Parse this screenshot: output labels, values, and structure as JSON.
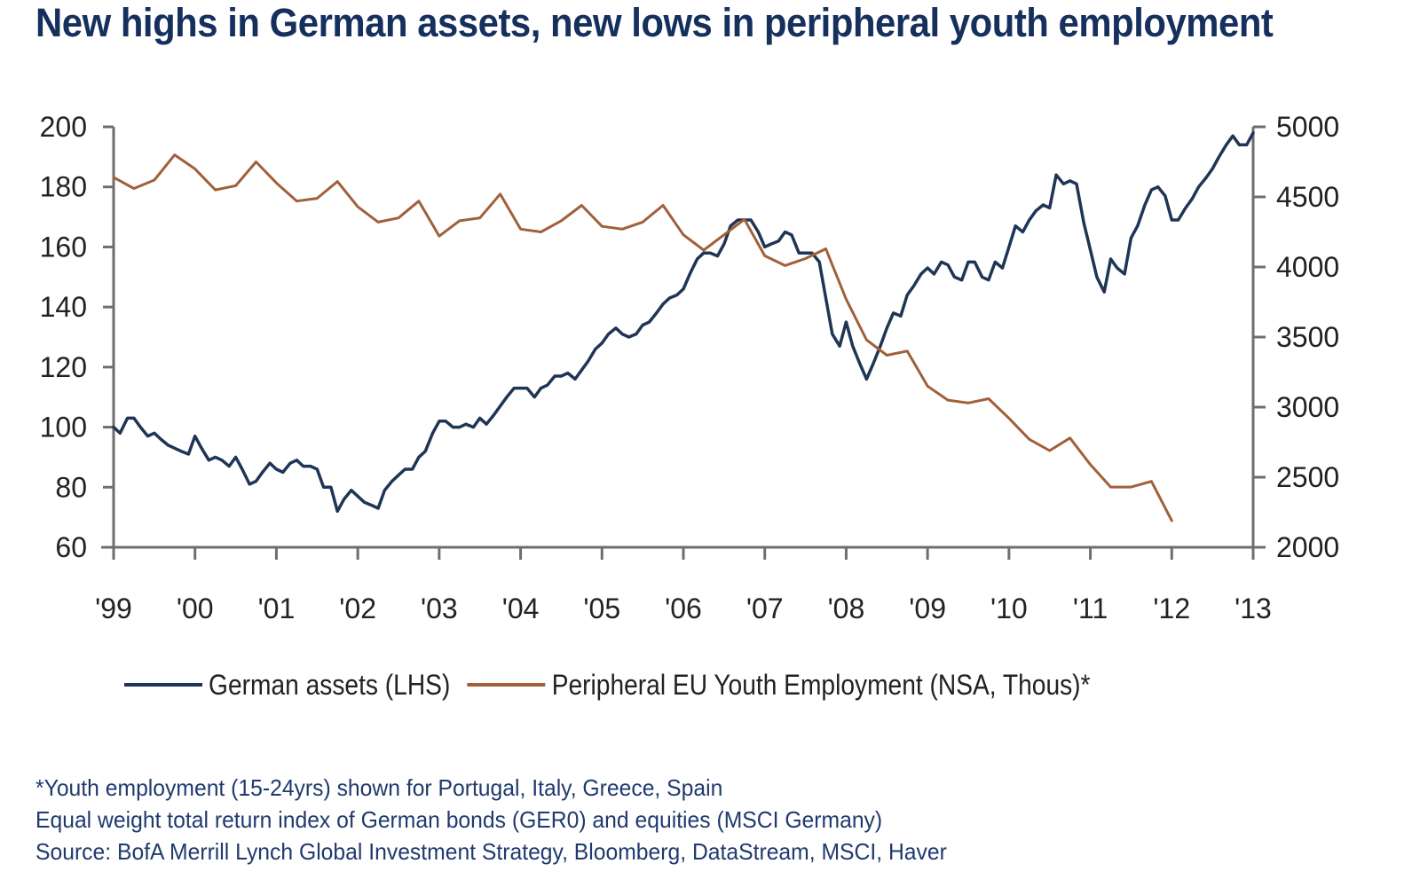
{
  "chart_data": {
    "type": "line",
    "title": "New highs in German assets, new lows in peripheral youth employment",
    "xlabel": "",
    "ylabel_left": "",
    "ylabel_right": "",
    "x_ticks": [
      "'99",
      "'00",
      "'01",
      "'02",
      "'03",
      "'04",
      "'05",
      "'06",
      "'07",
      "'08",
      "'09",
      "'10",
      "'11",
      "'12",
      "'13"
    ],
    "x_range": [
      1999,
      2013
    ],
    "ylim_left": [
      60,
      200
    ],
    "y_ticks_left": [
      60,
      80,
      100,
      120,
      140,
      160,
      180,
      200
    ],
    "ylim_right": [
      2000,
      5000
    ],
    "y_ticks_right": [
      2000,
      2500,
      3000,
      3500,
      4000,
      4500,
      5000
    ],
    "grid": false,
    "legend_position": "bottom",
    "series": [
      {
        "name": "German assets (LHS)",
        "axis": "left",
        "color": "#1f3556",
        "points": [
          [
            1999.0,
            100
          ],
          [
            1999.08,
            98
          ],
          [
            1999.17,
            103
          ],
          [
            1999.25,
            103
          ],
          [
            1999.33,
            100
          ],
          [
            1999.42,
            97
          ],
          [
            1999.5,
            98
          ],
          [
            1999.58,
            96
          ],
          [
            1999.67,
            94
          ],
          [
            1999.75,
            93
          ],
          [
            1999.83,
            92
          ],
          [
            1999.92,
            91
          ],
          [
            2000.0,
            97
          ],
          [
            2000.08,
            93
          ],
          [
            2000.17,
            89
          ],
          [
            2000.25,
            90
          ],
          [
            2000.33,
            89
          ],
          [
            2000.42,
            87
          ],
          [
            2000.5,
            90
          ],
          [
            2000.58,
            86
          ],
          [
            2000.67,
            81
          ],
          [
            2000.75,
            82
          ],
          [
            2000.83,
            85
          ],
          [
            2000.92,
            88
          ],
          [
            2001.0,
            86
          ],
          [
            2001.08,
            85
          ],
          [
            2001.17,
            88
          ],
          [
            2001.25,
            89
          ],
          [
            2001.33,
            87
          ],
          [
            2001.42,
            87
          ],
          [
            2001.5,
            86
          ],
          [
            2001.58,
            80
          ],
          [
            2001.67,
            80
          ],
          [
            2001.75,
            72
          ],
          [
            2001.83,
            76
          ],
          [
            2001.92,
            79
          ],
          [
            2002.0,
            77
          ],
          [
            2002.08,
            75
          ],
          [
            2002.17,
            74
          ],
          [
            2002.25,
            73
          ],
          [
            2002.33,
            79
          ],
          [
            2002.42,
            82
          ],
          [
            2002.5,
            84
          ],
          [
            2002.58,
            86
          ],
          [
            2002.67,
            86
          ],
          [
            2002.75,
            90
          ],
          [
            2002.83,
            92
          ],
          [
            2002.92,
            98
          ],
          [
            2003.0,
            102
          ],
          [
            2003.08,
            102
          ],
          [
            2003.17,
            100
          ],
          [
            2003.25,
            100
          ],
          [
            2003.33,
            101
          ],
          [
            2003.42,
            100
          ],
          [
            2003.5,
            103
          ],
          [
            2003.58,
            101
          ],
          [
            2003.67,
            104
          ],
          [
            2003.75,
            107
          ],
          [
            2003.83,
            110
          ],
          [
            2003.92,
            113
          ],
          [
            2004.0,
            113
          ],
          [
            2004.08,
            113
          ],
          [
            2004.17,
            110
          ],
          [
            2004.25,
            113
          ],
          [
            2004.33,
            114
          ],
          [
            2004.42,
            117
          ],
          [
            2004.5,
            117
          ],
          [
            2004.58,
            118
          ],
          [
            2004.67,
            116
          ],
          [
            2004.75,
            119
          ],
          [
            2004.83,
            122
          ],
          [
            2004.92,
            126
          ],
          [
            2005.0,
            128
          ],
          [
            2005.08,
            131
          ],
          [
            2005.17,
            133
          ],
          [
            2005.25,
            131
          ],
          [
            2005.33,
            130
          ],
          [
            2005.42,
            131
          ],
          [
            2005.5,
            134
          ],
          [
            2005.58,
            135
          ],
          [
            2005.67,
            138
          ],
          [
            2005.75,
            141
          ],
          [
            2005.83,
            143
          ],
          [
            2005.92,
            144
          ],
          [
            2006.0,
            146
          ],
          [
            2006.08,
            151
          ],
          [
            2006.17,
            156
          ],
          [
            2006.25,
            158
          ],
          [
            2006.33,
            158
          ],
          [
            2006.42,
            157
          ],
          [
            2006.5,
            161
          ],
          [
            2006.58,
            167
          ],
          [
            2006.67,
            169
          ],
          [
            2006.75,
            169
          ],
          [
            2006.83,
            169
          ],
          [
            2006.92,
            165
          ],
          [
            2007.0,
            160
          ],
          [
            2007.08,
            161
          ],
          [
            2007.17,
            162
          ],
          [
            2007.25,
            165
          ],
          [
            2007.33,
            164
          ],
          [
            2007.42,
            158
          ],
          [
            2007.5,
            158
          ],
          [
            2007.58,
            158
          ],
          [
            2007.67,
            155
          ],
          [
            2007.75,
            143
          ],
          [
            2007.83,
            131
          ],
          [
            2007.92,
            127
          ],
          [
            2008.0,
            135
          ],
          [
            2008.08,
            127
          ],
          [
            2008.17,
            121
          ],
          [
            2008.25,
            116
          ],
          [
            2008.33,
            121
          ],
          [
            2008.42,
            127
          ],
          [
            2008.5,
            133
          ],
          [
            2008.58,
            138
          ],
          [
            2008.67,
            137
          ],
          [
            2008.75,
            144
          ],
          [
            2008.83,
            147
          ],
          [
            2008.92,
            151
          ],
          [
            2009.0,
            153
          ],
          [
            2009.08,
            151
          ],
          [
            2009.17,
            155
          ],
          [
            2009.25,
            154
          ],
          [
            2009.33,
            150
          ],
          [
            2009.42,
            149
          ],
          [
            2009.5,
            155
          ],
          [
            2009.58,
            155
          ],
          [
            2009.67,
            150
          ],
          [
            2009.75,
            149
          ],
          [
            2009.83,
            155
          ],
          [
            2009.92,
            153
          ],
          [
            2010.0,
            160
          ],
          [
            2010.08,
            167
          ],
          [
            2010.17,
            165
          ],
          [
            2010.25,
            169
          ],
          [
            2010.33,
            172
          ],
          [
            2010.42,
            174
          ],
          [
            2010.5,
            173
          ],
          [
            2010.58,
            184
          ],
          [
            2010.67,
            181
          ],
          [
            2010.75,
            182
          ],
          [
            2010.83,
            181
          ],
          [
            2010.92,
            168
          ],
          [
            2011.0,
            159
          ],
          [
            2011.08,
            150
          ],
          [
            2011.17,
            145
          ],
          [
            2011.25,
            156
          ],
          [
            2011.33,
            153
          ],
          [
            2011.42,
            151
          ],
          [
            2011.5,
            163
          ],
          [
            2011.58,
            167
          ],
          [
            2011.67,
            174
          ],
          [
            2011.75,
            179
          ],
          [
            2011.83,
            180
          ],
          [
            2011.92,
            177
          ],
          [
            2012.0,
            169
          ],
          [
            2012.08,
            169
          ],
          [
            2012.17,
            173
          ],
          [
            2012.25,
            176
          ],
          [
            2012.33,
            180
          ],
          [
            2012.42,
            183
          ],
          [
            2012.5,
            186
          ],
          [
            2012.58,
            190
          ],
          [
            2012.67,
            194
          ],
          [
            2012.75,
            197
          ],
          [
            2012.83,
            194
          ],
          [
            2012.92,
            194
          ],
          [
            2013.0,
            198
          ]
        ]
      },
      {
        "name": "Peripheral EU Youth Employment (NSA, Thous)*",
        "axis": "right",
        "color": "#a0603a",
        "points": [
          [
            1999.0,
            4640
          ],
          [
            1999.25,
            4560
          ],
          [
            1999.5,
            4620
          ],
          [
            1999.75,
            4800
          ],
          [
            2000.0,
            4700
          ],
          [
            2000.25,
            4550
          ],
          [
            2000.5,
            4580
          ],
          [
            2000.75,
            4750
          ],
          [
            2001.0,
            4600
          ],
          [
            2001.25,
            4470
          ],
          [
            2001.5,
            4490
          ],
          [
            2001.75,
            4610
          ],
          [
            2002.0,
            4430
          ],
          [
            2002.25,
            4320
          ],
          [
            2002.5,
            4350
          ],
          [
            2002.75,
            4470
          ],
          [
            2003.0,
            4220
          ],
          [
            2003.25,
            4330
          ],
          [
            2003.5,
            4350
          ],
          [
            2003.75,
            4520
          ],
          [
            2004.0,
            4270
          ],
          [
            2004.25,
            4250
          ],
          [
            2004.5,
            4330
          ],
          [
            2004.75,
            4440
          ],
          [
            2005.0,
            4290
          ],
          [
            2005.25,
            4270
          ],
          [
            2005.5,
            4320
          ],
          [
            2005.75,
            4440
          ],
          [
            2006.0,
            4230
          ],
          [
            2006.25,
            4120
          ],
          [
            2006.5,
            4230
          ],
          [
            2006.75,
            4340
          ],
          [
            2007.0,
            4080
          ],
          [
            2007.25,
            4010
          ],
          [
            2007.5,
            4060
          ],
          [
            2007.75,
            4130
          ],
          [
            2008.0,
            3770
          ],
          [
            2008.25,
            3480
          ],
          [
            2008.5,
            3370
          ],
          [
            2008.75,
            3400
          ],
          [
            2009.0,
            3150
          ],
          [
            2009.25,
            3050
          ],
          [
            2009.5,
            3030
          ],
          [
            2009.75,
            3060
          ],
          [
            2010.0,
            2920
          ],
          [
            2010.25,
            2770
          ],
          [
            2010.5,
            2690
          ],
          [
            2010.75,
            2780
          ],
          [
            2011.0,
            2590
          ],
          [
            2011.25,
            2430
          ],
          [
            2011.5,
            2430
          ],
          [
            2011.75,
            2470
          ],
          [
            2012.0,
            2190
          ]
        ]
      }
    ]
  },
  "footnotes": [
    "*Youth employment (15-24yrs) shown for Portugal, Italy, Greece, Spain",
    "Equal weight total return index of German bonds (GER0) and equities (MSCI Germany)",
    "Source: BofA Merrill Lynch Global Investment Strategy, Bloomberg, DataStream, MSCI, Haver"
  ]
}
